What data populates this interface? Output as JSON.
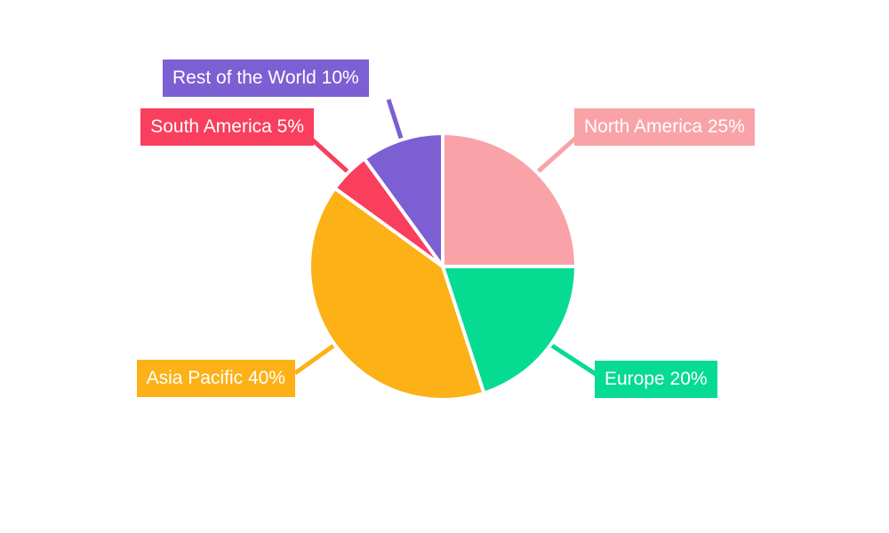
{
  "canvas": {
    "background": "#ffffff"
  },
  "chart_data": {
    "type": "pie",
    "title": "",
    "start_angle_deg": 0,
    "direction": "clockwise",
    "legend_position": "callout-labels",
    "slices": [
      {
        "label": "North America",
        "value": 25,
        "display": "North America 25%",
        "color": "#F9A3A8"
      },
      {
        "label": "Europe",
        "value": 20,
        "display": "Europe 20%",
        "color": "#06DB92"
      },
      {
        "label": "Asia Pacific",
        "value": 40,
        "display": "Asia Pacific 40%",
        "color": "#FCB116"
      },
      {
        "label": "South America",
        "value": 5,
        "display": "South America 5%",
        "color": "#F93E5E"
      },
      {
        "label": "Rest of the World",
        "value": 10,
        "display": "Rest of the World 10%",
        "color": "#7C5FD3"
      }
    ]
  }
}
